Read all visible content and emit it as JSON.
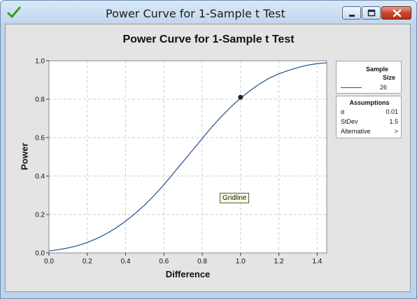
{
  "window": {
    "title": "Power Curve for 1-Sample t Test",
    "icons": {
      "app": "green-check-icon",
      "minimize": "minimize-icon",
      "maximize": "maximize-icon",
      "close": "close-icon"
    }
  },
  "chart_data": {
    "type": "line",
    "title": "Power Curve for 1-Sample t Test",
    "xlabel": "Difference",
    "ylabel": "Power",
    "xlim": [
      0,
      1.45
    ],
    "ylim": [
      0,
      1.0
    ],
    "xticks": [
      "0.0",
      "0.2",
      "0.4",
      "0.6",
      "0.8",
      "1.0",
      "1.2",
      "1.4"
    ],
    "yticks": [
      "0.0",
      "0.2",
      "0.4",
      "0.6",
      "0.8",
      "1.0"
    ],
    "grid": true,
    "series": [
      {
        "name": "26",
        "color": "#1f4e8f",
        "x": [
          0.0,
          0.05,
          0.1,
          0.15,
          0.2,
          0.25,
          0.3,
          0.35,
          0.4,
          0.45,
          0.5,
          0.55,
          0.6,
          0.65,
          0.7,
          0.75,
          0.8,
          0.85,
          0.9,
          0.95,
          1.0,
          1.05,
          1.1,
          1.15,
          1.2,
          1.25,
          1.3,
          1.35,
          1.4,
          1.45
        ],
        "y": [
          0.01,
          0.017,
          0.026,
          0.038,
          0.054,
          0.075,
          0.1,
          0.13,
          0.165,
          0.205,
          0.25,
          0.3,
          0.355,
          0.415,
          0.475,
          0.535,
          0.595,
          0.655,
          0.71,
          0.76,
          0.805,
          0.845,
          0.88,
          0.91,
          0.932,
          0.95,
          0.965,
          0.977,
          0.985,
          0.99
        ]
      }
    ],
    "highlight_point": {
      "x": 1.0,
      "y": 0.81
    },
    "legend": {
      "placement": "right",
      "header_line1": "Sample",
      "header_line2": "Size",
      "entry": "26"
    },
    "assumptions": {
      "title": "Assumptions",
      "rows": [
        {
          "key": "α",
          "value": "0.01"
        },
        {
          "key": "StDev",
          "value": "1.5"
        },
        {
          "key": "Alternative",
          "value": ">"
        }
      ]
    },
    "tooltip": "Gridline"
  }
}
